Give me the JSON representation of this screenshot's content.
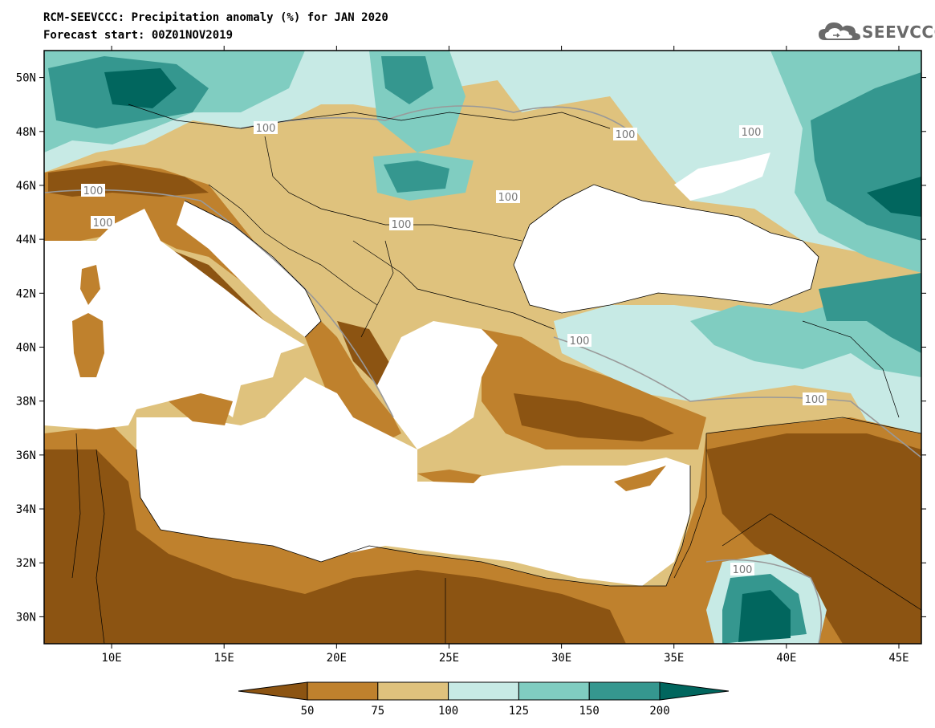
{
  "header": {
    "title_line1": "RCM-SEEVCCC: Precipitation anomaly (%) for JAN 2020",
    "title_line2": "Forecast start: 00Z01NOV2019"
  },
  "logo": {
    "text": "SEEVCCC",
    "icon": "cloud-logo-icon",
    "color": "#6a6a6a"
  },
  "map": {
    "lon_range": [
      7,
      46
    ],
    "lat_range": [
      29,
      51
    ],
    "lon_ticks": [
      "10E",
      "15E",
      "20E",
      "25E",
      "30E",
      "35E",
      "40E",
      "45E"
    ],
    "lat_ticks": [
      "30N",
      "32N",
      "34N",
      "36N",
      "38N",
      "40N",
      "42N",
      "44N",
      "46N",
      "48N",
      "50N"
    ],
    "contour_label": "100",
    "fill_colors": [
      "#8c5412",
      "#bf812d",
      "#dfc27d",
      "#c7eae5",
      "#80cdc1",
      "#35978f",
      "#01665e"
    ]
  },
  "legend": {
    "labels": [
      "50",
      "75",
      "100",
      "125",
      "150",
      "200"
    ],
    "colors": [
      "#8c5412",
      "#bf812d",
      "#dfc27d",
      "#c7eae5",
      "#80cdc1",
      "#35978f",
      "#01665e"
    ]
  }
}
